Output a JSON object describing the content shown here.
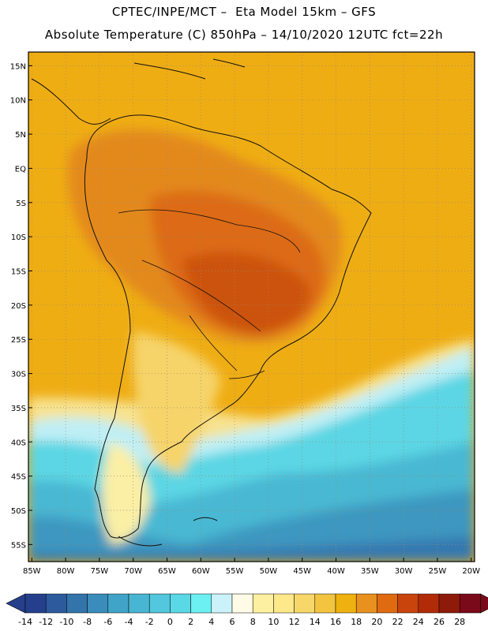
{
  "title": {
    "line1": "CPTEC/INPE/MCT –  Eta Model 15km – GFS",
    "line2": "Absolute Temperature (C) 850hPa – 14/10/2020 12UTC fct=22h"
  },
  "map": {
    "region": "South America",
    "lon_range": [
      -85.5,
      -19.5
    ],
    "lat_range": [
      -57.5,
      17
    ],
    "lat_ticks": [
      {
        "lat": 15,
        "label": "15N"
      },
      {
        "lat": 10,
        "label": "10N"
      },
      {
        "lat": 5,
        "label": "5N"
      },
      {
        "lat": 0,
        "label": "EQ"
      },
      {
        "lat": -5,
        "label": "5S"
      },
      {
        "lat": -10,
        "label": "10S"
      },
      {
        "lat": -15,
        "label": "15S"
      },
      {
        "lat": -20,
        "label": "20S"
      },
      {
        "lat": -25,
        "label": "25S"
      },
      {
        "lat": -30,
        "label": "30S"
      },
      {
        "lat": -35,
        "label": "35S"
      },
      {
        "lat": -40,
        "label": "40S"
      },
      {
        "lat": -45,
        "label": "45S"
      },
      {
        "lat": -50,
        "label": "50S"
      },
      {
        "lat": -55,
        "label": "55S"
      }
    ],
    "lon_ticks": [
      {
        "lon": -85,
        "label": "85W"
      },
      {
        "lon": -80,
        "label": "80W"
      },
      {
        "lon": -75,
        "label": "75W"
      },
      {
        "lon": -70,
        "label": "70W"
      },
      {
        "lon": -65,
        "label": "65W"
      },
      {
        "lon": -60,
        "label": "60W"
      },
      {
        "lon": -55,
        "label": "55W"
      },
      {
        "lon": -50,
        "label": "50W"
      },
      {
        "lon": -45,
        "label": "45W"
      },
      {
        "lon": -40,
        "label": "40W"
      },
      {
        "lon": -35,
        "label": "35W"
      },
      {
        "lon": -30,
        "label": "30W"
      },
      {
        "lon": -25,
        "label": "25W"
      },
      {
        "lon": -20,
        "label": "20W"
      }
    ]
  },
  "colorbar": {
    "ticks": [
      "-14",
      "-12",
      "-10",
      "-8",
      "-6",
      "-4",
      "-2",
      "0",
      "2",
      "4",
      "6",
      "8",
      "10",
      "12",
      "14",
      "16",
      "18",
      "20",
      "22",
      "24",
      "26",
      "28"
    ],
    "low_color": "#253f8a",
    "high_color": "#7a0a1a",
    "colors": [
      "#263f8c",
      "#2d5a9d",
      "#3374ab",
      "#3a8cbb",
      "#40a4c8",
      "#48b6d2",
      "#52c7dd",
      "#5ad8e6",
      "#6cf0f2",
      "#cbf2f8",
      "#fffbe6",
      "#fdf0a0",
      "#fde88a",
      "#f8d76a",
      "#f2c440",
      "#efb10f",
      "#e8911e",
      "#df6a10",
      "#c9440c",
      "#b22b09",
      "#8e1a0a",
      "#7a0a1a"
    ]
  }
}
